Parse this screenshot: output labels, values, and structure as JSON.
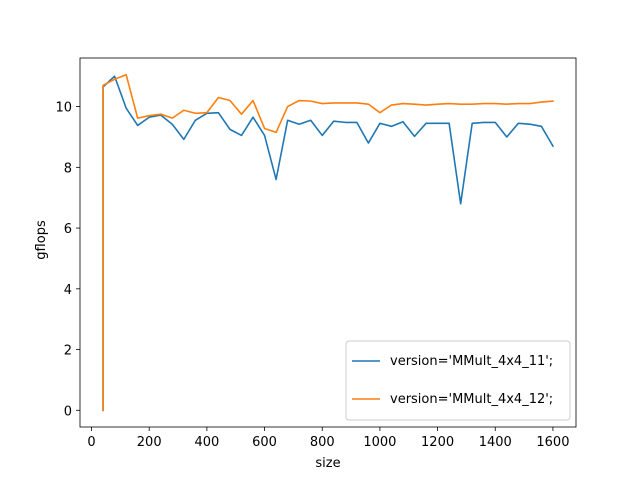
{
  "chart_data": {
    "type": "line",
    "title": "",
    "xlabel": "size",
    "ylabel": "gflops",
    "xlim": [
      -40,
      1680
    ],
    "ylim": [
      -0.55,
      11.6
    ],
    "xticks": [
      0,
      200,
      400,
      600,
      800,
      1000,
      1200,
      1400,
      1600
    ],
    "yticks": [
      0,
      2,
      4,
      6,
      8,
      10
    ],
    "grid": false,
    "legend_position": "lower-right",
    "series": [
      {
        "name": "version='MMult_4x4_11';",
        "color": "#1f77b4",
        "x": [
          40,
          40,
          80,
          120,
          160,
          200,
          240,
          280,
          320,
          360,
          400,
          440,
          480,
          520,
          560,
          600,
          640,
          680,
          720,
          760,
          800,
          840,
          880,
          920,
          960,
          1000,
          1040,
          1080,
          1120,
          1160,
          1200,
          1240,
          1280,
          1320,
          1360,
          1400,
          1440,
          1480,
          1520,
          1560,
          1600
        ],
        "values": [
          0.0,
          10.65,
          11.0,
          9.95,
          9.38,
          9.65,
          9.72,
          9.42,
          8.92,
          9.55,
          9.78,
          9.8,
          9.25,
          9.05,
          9.65,
          9.05,
          7.6,
          9.55,
          9.42,
          9.55,
          9.05,
          9.52,
          9.48,
          9.48,
          8.8,
          9.45,
          9.35,
          9.5,
          9.02,
          9.45,
          9.45,
          9.45,
          6.8,
          9.45,
          9.48,
          9.48,
          9.0,
          9.45,
          9.42,
          9.35,
          8.7
        ]
      },
      {
        "name": "version='MMult_4x4_12';",
        "color": "#ff7f0e",
        "x": [
          40,
          40,
          80,
          120,
          160,
          200,
          240,
          280,
          320,
          360,
          400,
          440,
          480,
          520,
          560,
          600,
          640,
          680,
          720,
          760,
          800,
          840,
          880,
          920,
          960,
          1000,
          1040,
          1080,
          1120,
          1160,
          1200,
          1240,
          1280,
          1320,
          1360,
          1400,
          1440,
          1480,
          1520,
          1560,
          1600
        ],
        "values": [
          0.0,
          10.7,
          10.9,
          11.05,
          9.62,
          9.7,
          9.75,
          9.62,
          9.88,
          9.78,
          9.8,
          10.3,
          10.2,
          9.75,
          10.2,
          9.28,
          9.15,
          10.0,
          10.2,
          10.18,
          10.1,
          10.12,
          10.12,
          10.12,
          10.08,
          9.8,
          10.05,
          10.1,
          10.08,
          10.05,
          10.08,
          10.1,
          10.08,
          10.08,
          10.1,
          10.1,
          10.08,
          10.1,
          10.1,
          10.15,
          10.18
        ]
      }
    ]
  }
}
